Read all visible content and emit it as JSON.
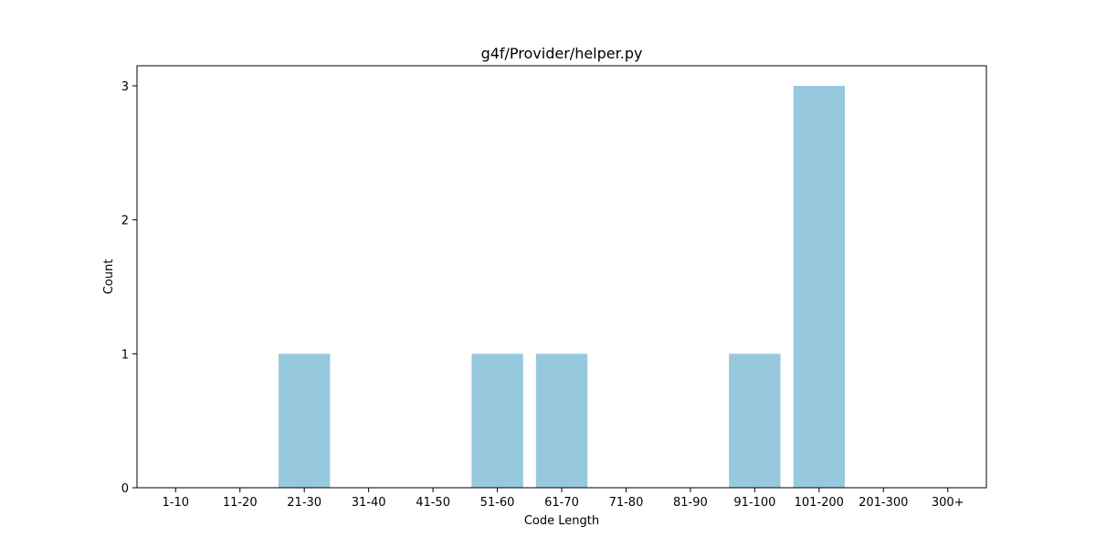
{
  "chart_data": {
    "type": "bar",
    "title": "g4f/Provider/helper.py",
    "xlabel": "Code Length",
    "ylabel": "Count",
    "categories": [
      "1-10",
      "11-20",
      "21-30",
      "31-40",
      "41-50",
      "51-60",
      "61-70",
      "71-80",
      "81-90",
      "91-100",
      "101-200",
      "201-300",
      "300+"
    ],
    "values": [
      0,
      0,
      1,
      0,
      0,
      1,
      1,
      0,
      0,
      1,
      3,
      0,
      0
    ],
    "yticks": [
      "0",
      "1",
      "2",
      "3"
    ],
    "ylim": [
      0,
      3.15
    ],
    "grid": false,
    "bar_color": "#96c9de"
  }
}
